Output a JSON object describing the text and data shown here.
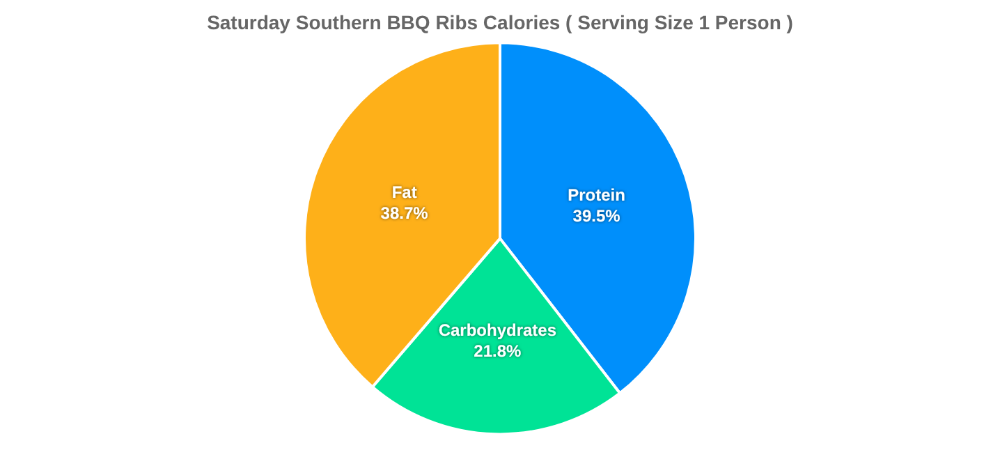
{
  "chart_data": {
    "type": "pie",
    "title": "Saturday Southern BBQ Ribs Calories ( Serving Size 1 Person )",
    "categories": [
      "Protein",
      "Carbohydrates",
      "Fat"
    ],
    "values": [
      39.5,
      21.8,
      38.7
    ],
    "colors": [
      "#008ffb",
      "#00e396",
      "#feb019"
    ],
    "value_labels": [
      "39.5%",
      "21.8%",
      "38.7%"
    ],
    "legend": false
  }
}
